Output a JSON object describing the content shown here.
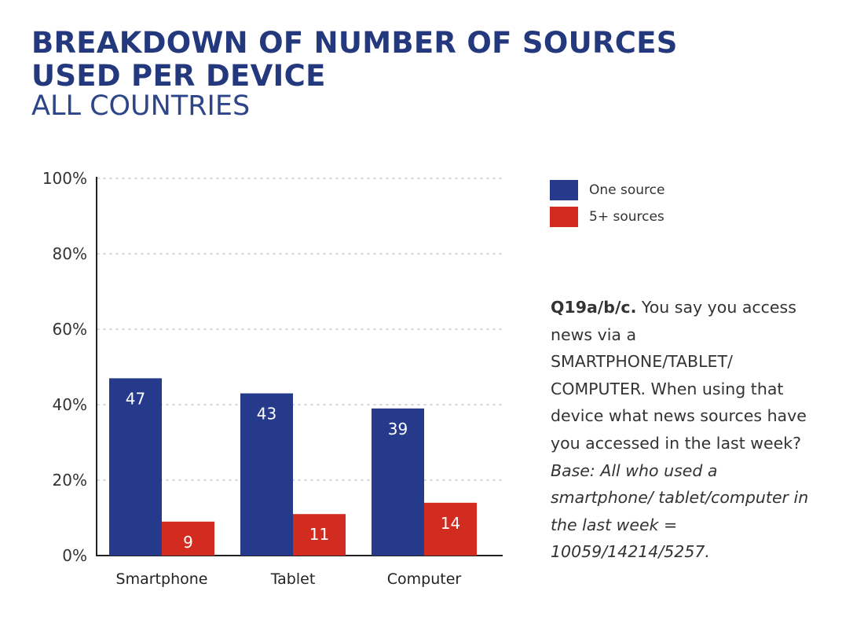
{
  "title_lines": [
    "BREAKDOWN OF NUMBER OF SOURCES",
    "USED PER DEVICE"
  ],
  "subtitle": "ALL COUNTRIES",
  "legend": [
    {
      "label": "One source",
      "color": "#253a8a"
    },
    {
      "label": "5+ sources",
      "color": "#d22b1f"
    }
  ],
  "note": {
    "question_id": "Q19a/b/c.",
    "question_text": " You say you access news via a SMARTPHONE/TABLET/ COMPUTER. When using that device what news sources have you accessed in the last week? ",
    "base_text": "Base: All who used a smartphone/ tablet/computer in the last week = 10059/14214/5257."
  },
  "chart_data": {
    "type": "bar",
    "title": "BREAKDOWN OF NUMBER OF SOURCES USED PER DEVICE",
    "subtitle": "ALL COUNTRIES",
    "xlabel": "",
    "ylabel": "",
    "categories": [
      "Smartphone",
      "Tablet",
      "Computer"
    ],
    "series": [
      {
        "name": "One source",
        "values": [
          47,
          43,
          39
        ],
        "color": "#253a8a"
      },
      {
        "name": "5+ sources",
        "values": [
          9,
          11,
          14
        ],
        "color": "#d22b1f"
      }
    ],
    "ylim": [
      0,
      100
    ],
    "yticks": [
      0,
      20,
      40,
      60,
      80,
      100
    ],
    "ytick_labels": [
      "0%",
      "20%",
      "40%",
      "60%",
      "80%",
      "100%"
    ],
    "grid": true,
    "legend_position": "right",
    "data_labels": true
  }
}
